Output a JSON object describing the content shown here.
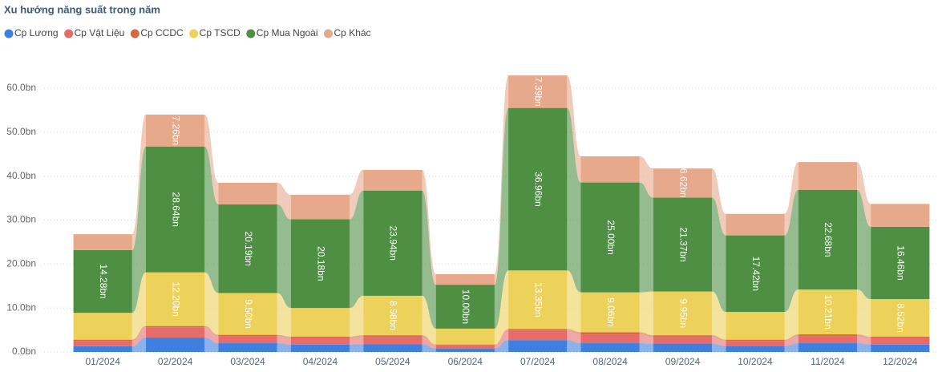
{
  "chart_data": {
    "type": "ribbon",
    "title": "Xu hướng năng suất trong năm",
    "categories": [
      "01/2024",
      "02/2024",
      "03/2024",
      "04/2024",
      "05/2024",
      "06/2024",
      "07/2024",
      "08/2024",
      "09/2024",
      "10/2024",
      "11/2024",
      "12/2024"
    ],
    "series": [
      {
        "name": "Cp Lương",
        "color": "#3f7fe0",
        "values": [
          1.3,
          3.3,
          2.0,
          1.7,
          1.8,
          0.8,
          2.7,
          2.0,
          1.9,
          1.4,
          2.0,
          1.7
        ],
        "value_labels": [
          null,
          null,
          null,
          null,
          null,
          null,
          null,
          null,
          null,
          null,
          null,
          null
        ]
      },
      {
        "name": "Cp Vật Liệu",
        "color": "#e66c6c",
        "values": [
          1.2,
          2.3,
          1.5,
          1.5,
          1.6,
          0.7,
          2.2,
          2.0,
          1.5,
          1.1,
          1.6,
          1.5
        ],
        "value_labels": [
          null,
          null,
          null,
          null,
          null,
          null,
          null,
          null,
          null,
          null,
          null,
          null
        ]
      },
      {
        "name": "Cp CCDC",
        "color": "#d9683a",
        "values": [
          0.3,
          0.3,
          0.4,
          0.3,
          0.4,
          0.2,
          0.3,
          0.5,
          0.4,
          0.3,
          0.4,
          0.3
        ],
        "value_labels": [
          null,
          null,
          null,
          null,
          null,
          null,
          null,
          null,
          null,
          null,
          null,
          null
        ]
      },
      {
        "name": "Cp TSCD",
        "color": "#ecd15b",
        "values": [
          6.1,
          12.2,
          9.5,
          6.5,
          8.98,
          3.6,
          13.35,
          9.06,
          9.95,
          6.3,
          10.21,
          8.52
        ],
        "value_labels": [
          null,
          "12.20bn",
          "9.50bn",
          null,
          "8.98bn",
          null,
          "13.35bn",
          "9.06bn",
          "9.95bn",
          null,
          "10.21bn",
          "8.52bn"
        ]
      },
      {
        "name": "Cp Mua Ngoài",
        "color": "#4e8f43",
        "values": [
          14.28,
          28.64,
          20.19,
          20.18,
          23.94,
          10.0,
          36.96,
          25.0,
          21.37,
          17.42,
          22.68,
          16.46
        ],
        "value_labels": [
          "14.28bn",
          "28.64bn",
          "20.19bn",
          "20.18bn",
          "23.94bn",
          "10.00bn",
          "36.96bn",
          "25.00bn",
          "21.37bn",
          "17.42bn",
          "22.68bn",
          "16.46bn"
        ]
      },
      {
        "name": "Cp Khác",
        "color": "#e6a98c",
        "values": [
          3.6,
          7.26,
          4.9,
          5.6,
          4.7,
          2.4,
          7.39,
          5.94,
          6.62,
          4.9,
          6.3,
          5.2
        ],
        "value_labels": [
          null,
          "7.26bn",
          null,
          null,
          null,
          null,
          "7.39bn",
          null,
          "6.62bn",
          null,
          null,
          null
        ]
      }
    ],
    "ylim": [
      0,
      65
    ],
    "yticks": [
      {
        "value": 0,
        "label": "0.0bn"
      },
      {
        "value": 10,
        "label": "10.0bn"
      },
      {
        "value": 20,
        "label": "20.0bn"
      },
      {
        "value": 30,
        "label": "30.0bn"
      },
      {
        "value": 40,
        "label": "40.0bn"
      },
      {
        "value": 50,
        "label": "50.0bn"
      },
      {
        "value": 60,
        "label": "60.0bn"
      }
    ],
    "grid": true
  }
}
